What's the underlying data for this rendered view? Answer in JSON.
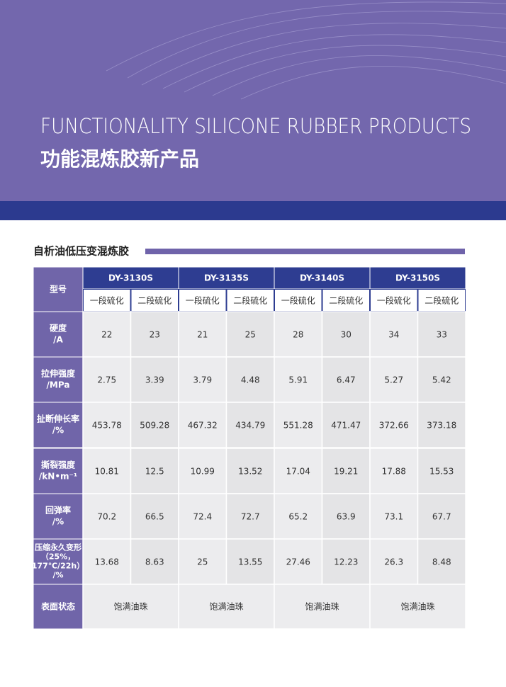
{
  "header": {
    "title_en": "FUNCTIONALITY SILICONE RUBBER PRODUCTS",
    "title_cn": "功能混炼胶新产品"
  },
  "section": {
    "title": "自析油低压变混炼胶"
  },
  "table": {
    "corner": "型号",
    "models": [
      "DY-3130S",
      "DY-3135S",
      "DY-3140S",
      "DY-3150S"
    ],
    "stages": [
      "一段硫化",
      "二段硫化",
      "一段硫化",
      "二段硫化",
      "一段硫化",
      "二段硫化",
      "一段硫化",
      "二段硫化"
    ],
    "rows": [
      {
        "label": [
          "硬度",
          "/A"
        ],
        "values": [
          22,
          23,
          21,
          25,
          28,
          30,
          34,
          33
        ]
      },
      {
        "label": [
          "拉伸强度",
          "/MPa"
        ],
        "values": [
          2.75,
          3.39,
          3.79,
          4.48,
          5.91,
          6.47,
          5.27,
          5.42
        ]
      },
      {
        "label": [
          "扯断伸长率",
          "/%"
        ],
        "values": [
          453.78,
          509.28,
          467.32,
          434.79,
          551.28,
          471.47,
          372.66,
          373.18
        ]
      },
      {
        "label": [
          "撕裂强度",
          "/kN•m⁻¹"
        ],
        "values": [
          10.81,
          12.5,
          10.99,
          13.52,
          17.04,
          19.21,
          17.88,
          15.53
        ]
      },
      {
        "label": [
          "回弹率",
          "/%"
        ],
        "values": [
          70.2,
          66.5,
          72.4,
          72.7,
          65.2,
          63.9,
          73.1,
          67.7
        ]
      },
      {
        "label": [
          "压缩永久变形",
          "（25%，",
          "177℃/22h）",
          "/%"
        ],
        "values": [
          13.68,
          8.63,
          25,
          13.55,
          27.46,
          12.23,
          26.3,
          8.48
        ]
      }
    ],
    "surface": {
      "label": "表面状态",
      "values": [
        "饱满油珠",
        "饱满油珠",
        "饱满油珠",
        "饱满油珠"
      ]
    }
  }
}
